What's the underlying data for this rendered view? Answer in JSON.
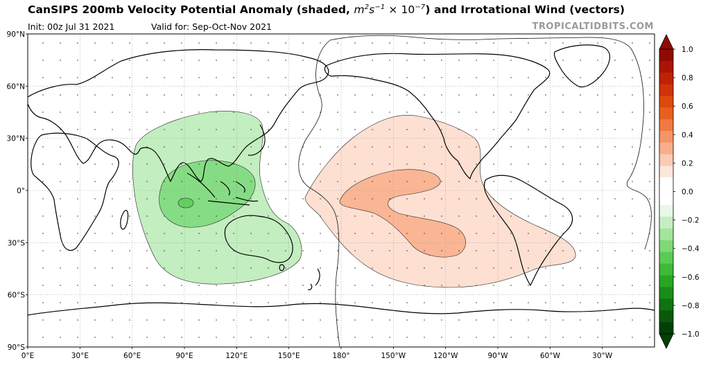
{
  "header": {
    "title_main": "CanSIPS 200mb Velocity Potential Anomaly (shaded, ",
    "title_unit_m": "m",
    "title_unit_exp1": "2",
    "title_unit_s": "s",
    "title_unit_exp2": "−1",
    "title_unit_times": " × 10",
    "title_unit_exp3": "−7",
    "title_tail": ") and Irrotational Wind (vectors)",
    "init": "Init: 00z Jul 31 2021",
    "valid": "Valid for: Sep-Oct-Nov 2021",
    "credit": "TROPICALTIDBITS.COM"
  },
  "map": {
    "lat_labels": [
      "90°N",
      "60°N",
      "30°N",
      "0°",
      "30°S",
      "60°S",
      "90°S"
    ],
    "lon_labels": [
      "0°E",
      "30°E",
      "60°E",
      "90°E",
      "120°E",
      "150°E",
      "180°",
      "150°W",
      "120°W",
      "90°W",
      "60°W",
      "30°W"
    ]
  },
  "colorbar": {
    "tick_labels": [
      "1.0",
      "0.8",
      "0.6",
      "0.4",
      "0.2",
      "0.0",
      "−0.2",
      "−0.4",
      "−0.6",
      "−0.8",
      "−1.0"
    ],
    "colors_positive": [
      "#fde6dc",
      "#fbcab4",
      "#f8ae8c",
      "#f59466",
      "#f07a40",
      "#e8601e",
      "#dd4a0c",
      "#cf3408",
      "#bf2305",
      "#a81503",
      "#8f0b02"
    ],
    "colors_negative": [
      "#e9f7e6",
      "#c5efc1",
      "#a2e59c",
      "#7fd978",
      "#5ccb56",
      "#3dbb37",
      "#27a623",
      "#198e17",
      "#0f7410",
      "#085a0a",
      "#043f06"
    ]
  },
  "colors": {
    "negative_anomaly_light": "#c3eec0",
    "negative_anomaly_dark": "#86dc84",
    "positive_anomaly_light": "#fde0d2",
    "positive_anomaly_dark": "#fab694"
  }
}
